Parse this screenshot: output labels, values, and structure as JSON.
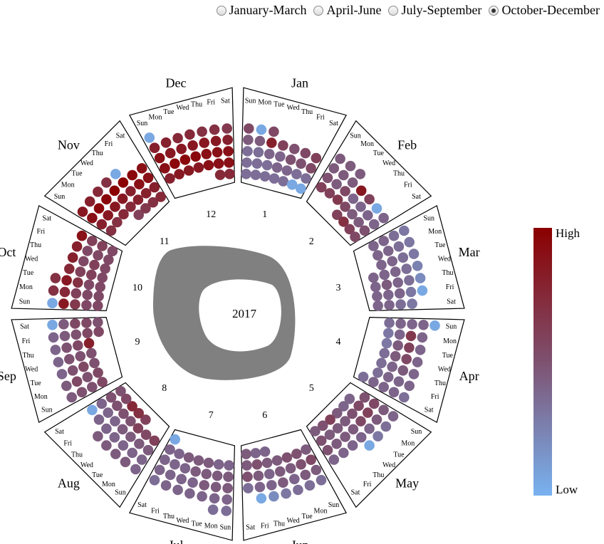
{
  "controls": {
    "options": [
      {
        "label": "January-March",
        "selected": false
      },
      {
        "label": "April-June",
        "selected": false
      },
      {
        "label": "July-September",
        "selected": false
      },
      {
        "label": "October-December",
        "selected": true
      }
    ]
  },
  "legend": {
    "high": "High",
    "low": "Low",
    "color_high": "#8b0000",
    "color_mid": "#7e5170",
    "color_low": "#78b2f0"
  },
  "chart_data": {
    "type": "heatmap",
    "title": "2017",
    "months": [
      "Jan",
      "Feb",
      "Mar",
      "Apr",
      "May",
      "Jun",
      "Jul",
      "Aug",
      "Sep",
      "Oct",
      "Nov",
      "Dec"
    ],
    "month_numbers": [
      "1",
      "2",
      "3",
      "4",
      "5",
      "6",
      "7",
      "8",
      "9",
      "10",
      "11",
      "12"
    ],
    "weekdays": [
      "Sun",
      "Mon",
      "Tue",
      "Wed",
      "Thu",
      "Fri",
      "Sat"
    ],
    "value_scale": {
      "low": "Low",
      "high": "High",
      "range": [
        0,
        1
      ]
    },
    "values": {
      "Jan": [
        0.35,
        0.35,
        0.35,
        0.35,
        0.35,
        0.05,
        0.05,
        0.35,
        0.35,
        0.35,
        0.4,
        0.4,
        0.35,
        0.35,
        0.35,
        0.35,
        0.4,
        0.4,
        0.5,
        0.5,
        0.55,
        0.45,
        0.45,
        0.8,
        0.6,
        0.5,
        0.55,
        0.6,
        0.55,
        0.05,
        0.55
      ],
      "Feb": [
        0.6,
        0.7,
        0.6,
        0.55,
        0.6,
        0.6,
        0.65,
        0.55,
        0.45,
        0.45,
        0.5,
        0.5,
        0.45,
        0.55,
        0.4,
        0.4,
        0.4,
        0.4,
        0.45,
        0.45,
        0.45,
        0.85,
        0.6,
        0.05,
        0.4,
        0.45,
        0.45,
        0.45
      ],
      "Mar": [
        0.4,
        0.4,
        0.4,
        0.4,
        0.4,
        0.4,
        0.4,
        0.4,
        0.45,
        0.4,
        0.4,
        0.4,
        0.4,
        0.4,
        0.4,
        0.4,
        0.4,
        0.35,
        0.35,
        0.35,
        0.35,
        0.35,
        0.35,
        0.3,
        0.3,
        0.3,
        0.3,
        0.3,
        0.25,
        0.2,
        0.05
      ],
      "Apr": [
        0.35,
        0.35,
        0.3,
        0.3,
        0.35,
        0.35,
        0.35,
        0.4,
        0.4,
        0.4,
        0.45,
        0.45,
        0.4,
        0.4,
        0.4,
        0.4,
        0.65,
        0.6,
        0.55,
        0.45,
        0.4,
        0.4,
        0.4,
        0.4,
        0.4,
        0.4,
        0.4,
        0.4,
        0.35,
        0.05
      ],
      "May": [
        0.4,
        0.4,
        0.45,
        0.6,
        0.5,
        0.45,
        0.5,
        0.55,
        0.5,
        0.45,
        0.45,
        0.45,
        0.5,
        0.55,
        0.6,
        0.55,
        0.45,
        0.45,
        0.45,
        0.5,
        0.45,
        0.45,
        0.4,
        0.4,
        0.4,
        0.4,
        0.4,
        0.4,
        0.35,
        0.3,
        0.05
      ],
      "Jun": [
        0.4,
        0.4,
        0.45,
        0.45,
        0.5,
        0.5,
        0.45,
        0.45,
        0.5,
        0.45,
        0.55,
        0.5,
        0.45,
        0.45,
        0.4,
        0.45,
        0.5,
        0.45,
        0.45,
        0.4,
        0.45,
        0.4,
        0.4,
        0.35,
        0.35,
        0.35,
        0.35,
        0.3,
        0.2,
        0.05
      ],
      "Jul": [
        0.05,
        0.4,
        0.4,
        0.45,
        0.45,
        0.45,
        0.4,
        0.4,
        0.45,
        0.45,
        0.45,
        0.45,
        0.4,
        0.4,
        0.4,
        0.45,
        0.45,
        0.45,
        0.4,
        0.4,
        0.4,
        0.4,
        0.4,
        0.4,
        0.4,
        0.4,
        0.4,
        0.4,
        0.35,
        0.35,
        0.35
      ],
      "Aug": [
        0.6,
        0.7,
        0.75,
        0.55,
        0.5,
        0.6,
        0.55,
        0.6,
        0.5,
        0.5,
        0.5,
        0.5,
        0.45,
        0.45,
        0.45,
        0.45,
        0.4,
        0.4,
        0.4,
        0.4,
        0.4,
        0.4,
        0.4,
        0.4,
        0.4,
        0.05,
        0.4,
        0.45,
        0.45,
        0.45,
        0.45
      ],
      "Sep": [
        0.55,
        0.5,
        0.55,
        0.55,
        0.5,
        0.5,
        0.8,
        0.55,
        0.55,
        0.5,
        0.5,
        0.55,
        0.5,
        0.55,
        0.5,
        0.55,
        0.5,
        0.55,
        0.5,
        0.5,
        0.5,
        0.45,
        0.45,
        0.45,
        0.45,
        0.4,
        0.4,
        0.4,
        0.4,
        0.05
      ],
      "Oct": [
        0.55,
        0.55,
        0.55,
        0.55,
        0.55,
        0.55,
        0.55,
        0.55,
        0.55,
        0.55,
        0.6,
        0.6,
        0.55,
        0.6,
        0.65,
        0.6,
        0.7,
        0.6,
        0.55,
        0.55,
        0.6,
        0.85,
        0.75,
        0.85,
        0.75,
        0.8,
        0.8,
        0.9,
        0.05,
        0.7,
        0.7
      ],
      "Nov": [
        0.6,
        0.65,
        0.7,
        0.75,
        0.7,
        0.7,
        0.75,
        0.75,
        0.8,
        0.8,
        0.8,
        0.8,
        0.85,
        0.85,
        0.85,
        0.8,
        0.9,
        0.9,
        0.9,
        0.95,
        0.95,
        1.0,
        1.0,
        0.95,
        0.9,
        0.85,
        0.8,
        0.75,
        0.7,
        0.05
      ],
      "Dec": [
        0.75,
        0.75,
        0.8,
        0.85,
        0.85,
        0.85,
        0.9,
        0.9,
        0.9,
        0.9,
        0.95,
        0.95,
        0.95,
        0.9,
        0.9,
        0.9,
        0.9,
        0.85,
        0.85,
        0.85,
        0.85,
        0.85,
        0.8,
        0.8,
        0.8,
        0.75,
        0.75,
        0.7,
        0.7,
        0.65,
        0.05
      ]
    }
  }
}
